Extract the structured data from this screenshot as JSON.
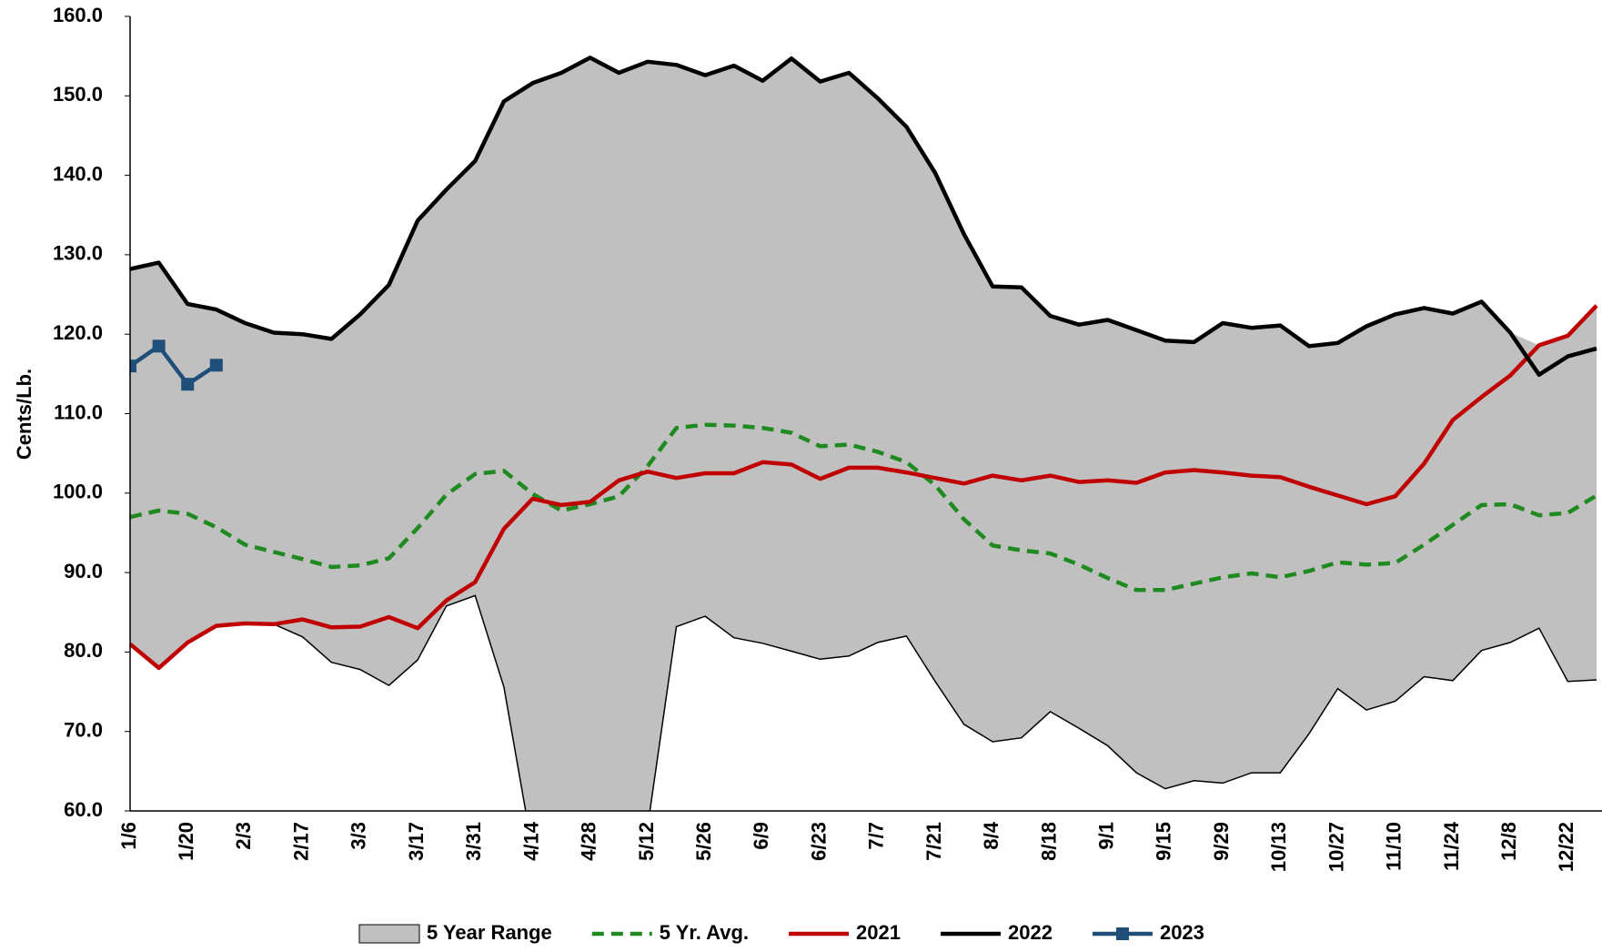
{
  "chart_data": {
    "type": "line",
    "y_label": "Cents/Lb.",
    "categories": [
      "1/6",
      null,
      "1/20",
      null,
      "2/3",
      null,
      "2/17",
      null,
      "3/3",
      null,
      "3/17",
      null,
      "3/31",
      null,
      "4/14",
      null,
      "4/28",
      null,
      "5/12",
      null,
      "5/26",
      null,
      "6/9",
      null,
      "6/23",
      null,
      "7/7",
      null,
      "7/21",
      null,
      "8/4",
      null,
      "8/18",
      null,
      "9/1",
      null,
      "9/15",
      null,
      "9/29",
      null,
      "10/13",
      null,
      "10/27",
      null,
      "11/10",
      null,
      "11/24",
      null,
      "12/8",
      null,
      "12/22",
      null
    ],
    "ylim": [
      60,
      160
    ],
    "yticks": [
      {
        "value": 60,
        "label": "60.0"
      },
      {
        "value": 70,
        "label": "70.0"
      },
      {
        "value": 80,
        "label": "80.0"
      },
      {
        "value": 90,
        "label": "90.0"
      },
      {
        "value": 100,
        "label": "100.0"
      },
      {
        "value": 110,
        "label": "110.0"
      },
      {
        "value": 120,
        "label": "120.0"
      },
      {
        "value": 130,
        "label": "130.0"
      },
      {
        "value": 140,
        "label": "140.0"
      },
      {
        "value": 150,
        "label": "150.0"
      },
      {
        "value": 160,
        "label": "160.0"
      }
    ],
    "legend": "bottom",
    "series": [
      {
        "name": "5 Year Range",
        "kind": "range",
        "color": "#c0c0c0",
        "high": [
          128.2,
          129.0,
          123.8,
          123.1,
          121.4,
          120.2,
          120.0,
          119.4,
          122.5,
          126.2,
          134.3,
          138.2,
          141.8,
          149.3,
          151.6,
          152.9,
          154.8,
          152.9,
          154.3,
          153.9,
          152.6,
          153.8,
          151.9,
          154.7,
          151.8,
          152.9,
          149.7,
          146.1,
          140.3,
          132.6,
          126.0,
          125.9,
          122.3,
          121.2,
          121.8,
          120.5,
          119.2,
          119.0,
          121.4,
          120.8,
          121.1,
          118.5,
          118.9,
          121.0,
          122.5,
          123.3,
          122.6,
          124.1,
          120.2,
          118.6,
          119.8,
          123.6
        ],
        "low": [
          81.0,
          78.0,
          81.2,
          83.3,
          83.6,
          83.5,
          81.9,
          78.7,
          77.8,
          75.8,
          79.0,
          85.8,
          87.1,
          75.6,
          55,
          55,
          55,
          55,
          58,
          83.2,
          84.5,
          81.8,
          81.1,
          80.1,
          79.1,
          79.5,
          81.2,
          82.0,
          76.3,
          70.9,
          68.7,
          69.2,
          72.5,
          70.4,
          68.2,
          64.8,
          62.8,
          63.8,
          63.5,
          64.8,
          64.8,
          69.7,
          75.4,
          72.7,
          73.8,
          76.9,
          76.4,
          80.2,
          81.2,
          83.0,
          76.3,
          76.5
        ]
      },
      {
        "name": "5 Yr. Avg.",
        "kind": "dashed",
        "color": "#1f8a1f",
        "values": [
          97.0,
          97.8,
          97.4,
          95.7,
          93.5,
          92.6,
          91.7,
          90.7,
          90.9,
          91.8,
          95.6,
          99.8,
          102.4,
          102.8,
          99.9,
          97.8,
          98.6,
          99.6,
          103.4,
          108.2,
          108.6,
          108.5,
          108.2,
          107.6,
          105.9,
          106.1,
          105.2,
          103.9,
          101.0,
          96.7,
          93.4,
          92.8,
          92.4,
          91.0,
          89.3,
          87.8,
          87.8,
          88.6,
          89.4,
          89.9,
          89.4,
          90.2,
          91.3,
          91.0,
          91.2,
          93.5,
          96.0,
          98.5,
          98.6,
          97.2,
          97.5,
          99.7
        ]
      },
      {
        "name": "2021",
        "kind": "solid",
        "color": "#c00000",
        "values": [
          81.0,
          78.0,
          81.2,
          83.3,
          83.6,
          83.5,
          84.1,
          83.1,
          83.2,
          84.4,
          83.0,
          86.5,
          88.8,
          95.5,
          99.3,
          98.5,
          98.9,
          101.6,
          102.7,
          101.9,
          102.5,
          102.5,
          103.9,
          103.6,
          101.8,
          103.2,
          103.2,
          102.6,
          101.9,
          101.2,
          102.2,
          101.6,
          102.2,
          101.4,
          101.6,
          101.3,
          102.6,
          102.9,
          102.6,
          102.2,
          102.0,
          100.8,
          99.7,
          98.6,
          99.6,
          103.7,
          109.2,
          112.1,
          114.8,
          118.6,
          119.8,
          123.6
        ]
      },
      {
        "name": "2022",
        "kind": "solid",
        "color": "#000000",
        "values": [
          128.2,
          129.0,
          123.8,
          123.1,
          121.4,
          120.2,
          120.0,
          119.4,
          122.5,
          126.2,
          134.3,
          138.2,
          141.8,
          149.3,
          151.6,
          152.9,
          154.8,
          152.9,
          154.3,
          153.9,
          152.6,
          153.8,
          151.9,
          154.7,
          151.8,
          152.9,
          149.7,
          146.1,
          140.3,
          132.6,
          126.0,
          125.9,
          122.3,
          121.2,
          121.8,
          120.5,
          119.2,
          119.0,
          121.4,
          120.8,
          121.1,
          118.5,
          118.9,
          121.0,
          122.5,
          123.3,
          122.6,
          124.1,
          120.2,
          114.9,
          117.2,
          118.2
        ]
      },
      {
        "name": "2023",
        "kind": "marker",
        "color": "#1f4e79",
        "values": [
          116.0,
          118.5,
          113.7,
          116.1,
          null,
          null,
          null,
          null,
          null,
          null,
          null,
          null,
          null,
          null,
          null,
          null,
          null,
          null,
          null,
          null,
          null,
          null,
          null,
          null,
          null,
          null,
          null,
          null,
          null,
          null,
          null,
          null,
          null,
          null,
          null,
          null,
          null,
          null,
          null,
          null,
          null,
          null,
          null,
          null,
          null,
          null,
          null,
          null,
          null,
          null,
          null,
          null
        ]
      }
    ]
  }
}
